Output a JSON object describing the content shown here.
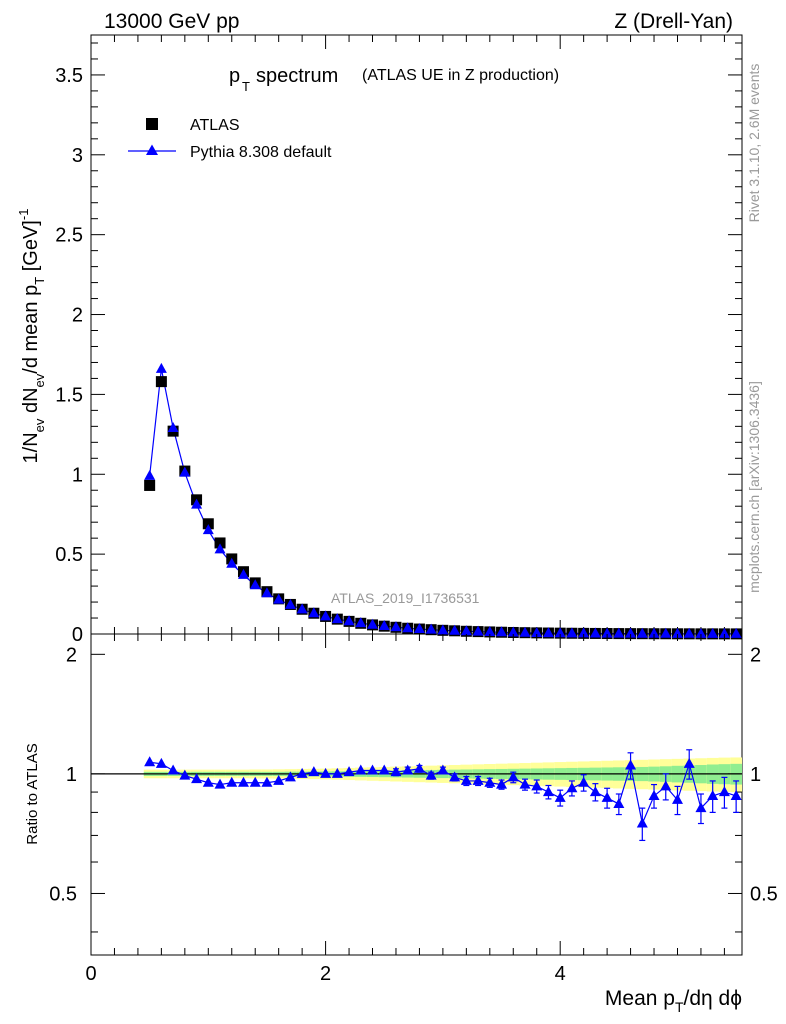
{
  "header": {
    "left": "13000 GeV pp",
    "right": "Z (Drell-Yan)"
  },
  "side_labels": {
    "top": "Rivet 3.1.10,  2.6M events",
    "bottom": "mcplots.cern.ch [arXiv:1306.3436]"
  },
  "chart_data": [
    {
      "type": "scatter",
      "panel": "main",
      "title_main": "p",
      "title_sub": "T",
      "title_word": "spectrum",
      "title_paren": "(ATLAS UE in Z production)",
      "ylabel": "1/N_ev dN_ev/d mean p_T [GeV]^-1",
      "xlabel": "",
      "analysis_label": "ATLAS_2019_I1736531",
      "xlim": [
        0,
        5.55
      ],
      "ylim": [
        0,
        3.75
      ],
      "yticks": [
        0,
        0.5,
        1,
        1.5,
        2,
        2.5,
        3,
        3.5
      ],
      "ytick_labels": [
        "0",
        "0.5",
        "1",
        "1.5",
        "2",
        "2.5",
        "3",
        "3.5"
      ],
      "legend_position": "top-left",
      "x": [
        0.5,
        0.6,
        0.7,
        0.8,
        0.9,
        1.0,
        1.1,
        1.2,
        1.3,
        1.4,
        1.5,
        1.6,
        1.7,
        1.8,
        1.9,
        2.0,
        2.1,
        2.2,
        2.3,
        2.4,
        2.5,
        2.6,
        2.7,
        2.8,
        2.9,
        3.0,
        3.1,
        3.2,
        3.3,
        3.4,
        3.5,
        3.6,
        3.7,
        3.8,
        3.9,
        4.0,
        4.1,
        4.2,
        4.3,
        4.4,
        4.5,
        4.6,
        4.7,
        4.8,
        4.9,
        5.0,
        5.1,
        5.2,
        5.3,
        5.4,
        5.5
      ],
      "series": [
        {
          "name": "ATLAS",
          "color": "#000000",
          "marker": "square",
          "values": [
            0.93,
            1.58,
            1.27,
            1.02,
            0.84,
            0.69,
            0.57,
            0.47,
            0.39,
            0.32,
            0.265,
            0.22,
            0.185,
            0.155,
            0.13,
            0.11,
            0.093,
            0.079,
            0.067,
            0.057,
            0.049,
            0.042,
            0.036,
            0.031,
            0.027,
            0.023,
            0.02,
            0.017,
            0.015,
            0.013,
            0.011,
            0.0095,
            0.0082,
            0.0071,
            0.0061,
            0.0053,
            0.0046,
            0.004,
            0.0035,
            0.003,
            0.0026,
            0.0023,
            0.002,
            0.0017,
            0.0015,
            0.0013,
            0.0011,
            0.001,
            0.0009,
            0.0008,
            0.0007
          ]
        },
        {
          "name": "Pythia 8.308 default",
          "color": "#0000ff",
          "marker": "triangle",
          "values": [
            0.99,
            1.66,
            1.29,
            1.01,
            0.81,
            0.65,
            0.53,
            0.44,
            0.37,
            0.305,
            0.255,
            0.215,
            0.182,
            0.154,
            0.13,
            0.11,
            0.093,
            0.08,
            0.068,
            0.058,
            0.05,
            0.043,
            0.036,
            0.031,
            0.027,
            0.023,
            0.02,
            0.017,
            0.0145,
            0.0125,
            0.0107,
            0.0093,
            0.0077,
            0.0066,
            0.0056,
            0.0047,
            0.0042,
            0.0038,
            0.0031,
            0.0026,
            0.0022,
            0.0024,
            0.0015,
            0.0015,
            0.0014,
            0.0011,
            0.0012,
            0.0008,
            0.0008,
            0.0007,
            0.0006
          ]
        }
      ]
    },
    {
      "type": "scatter",
      "panel": "ratio",
      "ylabel": "Ratio to ATLAS",
      "xlabel": "Mean p_T/dη dϕ",
      "xlim": [
        0,
        5.55
      ],
      "ylim": [
        0.35,
        2.25
      ],
      "xticks": [
        0,
        2,
        4
      ],
      "xtick_labels": [
        "0",
        "2",
        "4"
      ],
      "yticks": [
        0.5,
        1,
        2
      ],
      "ytick_labels": [
        "0.5",
        "1",
        "2"
      ],
      "x": [
        0.5,
        0.6,
        0.7,
        0.8,
        0.9,
        1.0,
        1.1,
        1.2,
        1.3,
        1.4,
        1.5,
        1.6,
        1.7,
        1.8,
        1.9,
        2.0,
        2.1,
        2.2,
        2.3,
        2.4,
        2.5,
        2.6,
        2.7,
        2.8,
        2.9,
        3.0,
        3.1,
        3.2,
        3.3,
        3.4,
        3.5,
        3.6,
        3.7,
        3.8,
        3.9,
        4.0,
        4.1,
        4.2,
        4.3,
        4.4,
        4.5,
        4.6,
        4.7,
        4.8,
        4.9,
        5.0,
        5.1,
        5.2,
        5.3,
        5.4,
        5.5
      ],
      "bands": {
        "stat_color": "#90ee90",
        "total_color": "#ffff99",
        "inner": [
          0.012,
          0.012,
          0.012,
          0.012,
          0.012,
          0.012,
          0.012,
          0.012,
          0.012,
          0.012,
          0.012,
          0.012,
          0.013,
          0.013,
          0.014,
          0.014,
          0.015,
          0.016,
          0.017,
          0.018,
          0.019,
          0.02,
          0.021,
          0.022,
          0.023,
          0.024,
          0.025,
          0.026,
          0.027,
          0.028,
          0.029,
          0.03,
          0.031,
          0.032,
          0.033,
          0.034,
          0.035,
          0.036,
          0.037,
          0.038,
          0.039,
          0.04,
          0.041,
          0.043,
          0.045,
          0.048,
          0.05,
          0.053,
          0.056,
          0.058,
          0.06
        ],
        "outer": [
          0.025,
          0.025,
          0.025,
          0.025,
          0.025,
          0.025,
          0.025,
          0.025,
          0.025,
          0.026,
          0.026,
          0.027,
          0.028,
          0.029,
          0.03,
          0.031,
          0.033,
          0.035,
          0.037,
          0.039,
          0.041,
          0.043,
          0.045,
          0.047,
          0.049,
          0.051,
          0.053,
          0.055,
          0.057,
          0.059,
          0.061,
          0.063,
          0.065,
          0.067,
          0.069,
          0.071,
          0.073,
          0.075,
          0.077,
          0.079,
          0.081,
          0.083,
          0.085,
          0.087,
          0.089,
          0.091,
          0.093,
          0.095,
          0.097,
          0.099,
          0.1
        ]
      },
      "reference_line": 1,
      "series": [
        {
          "name": "Pythia 8.308 default",
          "color": "#0000ff",
          "marker": "triangle",
          "values": [
            1.07,
            1.06,
            1.02,
            0.99,
            0.97,
            0.95,
            0.94,
            0.95,
            0.95,
            0.95,
            0.95,
            0.96,
            0.98,
            1.0,
            1.01,
            1.0,
            1.0,
            1.01,
            1.02,
            1.02,
            1.02,
            1.01,
            1.02,
            1.03,
            0.99,
            1.02,
            0.98,
            0.96,
            0.96,
            0.95,
            0.94,
            0.98,
            0.94,
            0.93,
            0.9,
            0.87,
            0.92,
            0.95,
            0.9,
            0.87,
            0.84,
            1.05,
            0.75,
            0.88,
            0.93,
            0.86,
            1.06,
            0.82,
            0.88,
            0.9,
            0.88
          ],
          "errors": [
            0.01,
            0.01,
            0.01,
            0.01,
            0.01,
            0.01,
            0.01,
            0.01,
            0.01,
            0.01,
            0.01,
            0.01,
            0.01,
            0.01,
            0.01,
            0.01,
            0.01,
            0.01,
            0.015,
            0.015,
            0.015,
            0.02,
            0.02,
            0.02,
            0.02,
            0.02,
            0.02,
            0.025,
            0.025,
            0.025,
            0.025,
            0.03,
            0.03,
            0.035,
            0.035,
            0.04,
            0.04,
            0.045,
            0.045,
            0.05,
            0.05,
            0.08,
            0.07,
            0.06,
            0.07,
            0.07,
            0.09,
            0.07,
            0.08,
            0.08,
            0.08
          ]
        }
      ]
    }
  ]
}
